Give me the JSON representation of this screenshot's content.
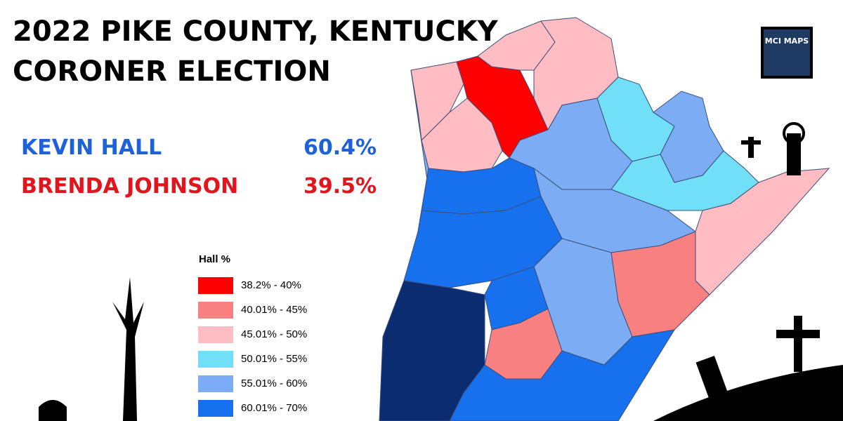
{
  "title": [
    "2022 PIKE COUNTY, KENTUCKY",
    "CORONER ELECTION"
  ],
  "results": [
    {
      "name": "KEVIN HALL",
      "percent": "60.4%",
      "color": "#1d62d9"
    },
    {
      "name": "BRENDA JOHNSON",
      "percent": "39.5%",
      "color": "#e3141b"
    }
  ],
  "legend": {
    "title": "Hall  %",
    "items": [
      {
        "label": "38.2% - 40%",
        "color": "#ff0000"
      },
      {
        "label": "40.01% - 45%",
        "color": "#f88080"
      },
      {
        "label": "45.01% - 50%",
        "color": "#ffbcc2"
      },
      {
        "label": "50.01% - 55%",
        "color": "#70dff7"
      },
      {
        "label": "55.01% - 60%",
        "color": "#7cacf4"
      },
      {
        "label": "60.01% - 70%",
        "color": "#1770ee"
      }
    ]
  },
  "logo": "MCI MAPS"
}
